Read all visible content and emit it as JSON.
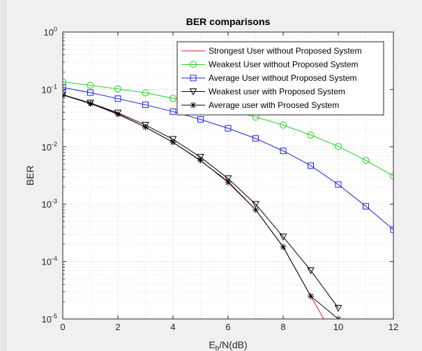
{
  "chart_data": {
    "type": "line",
    "title": "BER comparisons",
    "xlabel": "E",
    "xlabel_sub": "b",
    "xlabel_rest": "/N(dB)",
    "ylabel": "BER",
    "xlim": [
      0,
      12
    ],
    "ylim": [
      1e-05,
      1
    ],
    "yscale": "log",
    "grid": true,
    "legend_position": "top-right",
    "x_ticks": [
      0,
      2,
      4,
      6,
      8,
      10,
      12
    ],
    "y_ticks": [
      {
        "value": 1,
        "base": "10",
        "exp": "0"
      },
      {
        "value": 0.1,
        "base": "10",
        "exp": "-1"
      },
      {
        "value": 0.01,
        "base": "10",
        "exp": "-2"
      },
      {
        "value": 0.001,
        "base": "10",
        "exp": "-3"
      },
      {
        "value": 0.0001,
        "base": "10",
        "exp": "-4"
      },
      {
        "value": 1e-05,
        "base": "10",
        "exp": "-5"
      }
    ],
    "series": [
      {
        "name": "Strongest User without Proposed System",
        "color": "#e8191b",
        "marker": "none",
        "x": [
          0,
          1,
          2,
          3,
          4,
          5,
          6,
          7,
          8,
          9,
          9.5
        ],
        "y": [
          0.08,
          0.057,
          0.038,
          0.022,
          0.012,
          0.0057,
          0.0025,
          0.0008,
          0.00018,
          2.5e-05,
          9.5e-06
        ]
      },
      {
        "name": "Weakest User without Proposed System",
        "color": "#1fd21f",
        "marker": "circle",
        "x": [
          0,
          1,
          2,
          3,
          4,
          5,
          6,
          7,
          8,
          9,
          10,
          11,
          12
        ],
        "y": [
          0.135,
          0.118,
          0.102,
          0.087,
          0.07,
          0.056,
          0.044,
          0.033,
          0.024,
          0.016,
          0.0102,
          0.0058,
          0.0031
        ]
      },
      {
        "name": "Average User without Proposed System",
        "color": "#1f1fe0",
        "marker": "square",
        "x": [
          0,
          1,
          2,
          3,
          4,
          5,
          6,
          7,
          8,
          9,
          10,
          11,
          12
        ],
        "y": [
          0.108,
          0.088,
          0.069,
          0.054,
          0.041,
          0.03,
          0.021,
          0.014,
          0.0085,
          0.0047,
          0.0022,
          0.00092,
          0.00036
        ]
      },
      {
        "name": "Weakest user with Proposed System",
        "color": "#000000",
        "marker": "triangle-down",
        "x": [
          0,
          1,
          2,
          3,
          4,
          5,
          6,
          7,
          8,
          9,
          10
        ],
        "y": [
          0.081,
          0.058,
          0.039,
          0.024,
          0.0135,
          0.0066,
          0.0028,
          0.001,
          0.00027,
          7e-05,
          1.55e-05
        ]
      },
      {
        "name": "Average user with Proosed System",
        "color": "#000000",
        "marker": "star",
        "x": [
          0,
          1,
          2,
          3,
          4,
          5,
          6,
          7,
          8,
          9,
          10
        ],
        "y": [
          0.08,
          0.057,
          0.037,
          0.022,
          0.012,
          0.0058,
          0.0024,
          0.0008,
          0.00018,
          2.5e-05,
          1e-05
        ]
      }
    ]
  }
}
